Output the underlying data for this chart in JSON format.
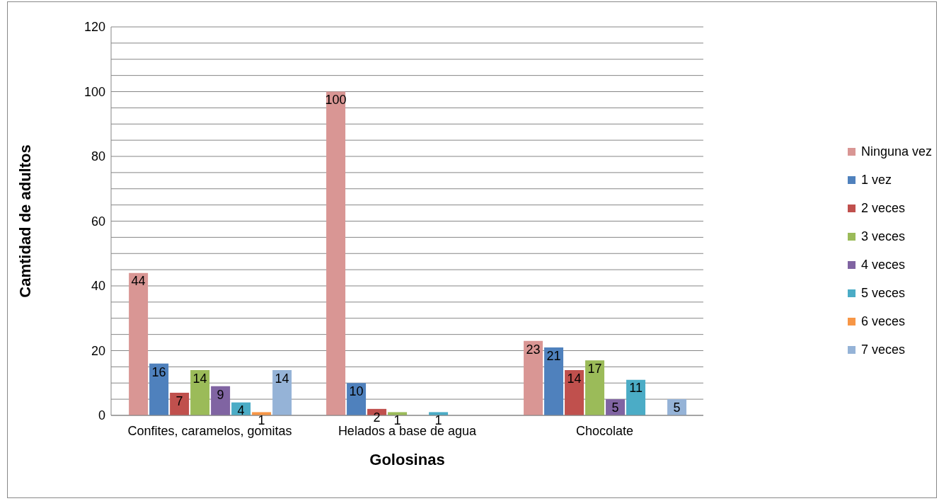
{
  "chart_data": {
    "type": "bar",
    "xlabel": "Golosinas",
    "ylabel": "Camtidad de adultos",
    "categories": [
      "Confites, caramelos, gomitas",
      "Helados a base de agua",
      "Chocolate"
    ],
    "series": [
      {
        "name": "Ninguna vez",
        "color": "#d99694",
        "values": [
          44,
          100,
          23
        ]
      },
      {
        "name": "1 vez",
        "color": "#4f81bd",
        "values": [
          16,
          10,
          21
        ]
      },
      {
        "name": "2 veces",
        "color": "#c0504d",
        "values": [
          7,
          2,
          14
        ]
      },
      {
        "name": "3 veces",
        "color": "#9bbb59",
        "values": [
          14,
          1,
          17
        ]
      },
      {
        "name": "4 veces",
        "color": "#8064a2",
        "values": [
          9,
          null,
          5
        ]
      },
      {
        "name": "5 veces",
        "color": "#4bacc6",
        "values": [
          4,
          1,
          11
        ]
      },
      {
        "name": "6 veces",
        "color": "#f79646",
        "values": [
          1,
          null,
          null
        ]
      },
      {
        "name": "7 veces",
        "color": "#95b3d7",
        "values": [
          14,
          null,
          5
        ]
      }
    ],
    "ylim": [
      0,
      120
    ],
    "yticks": [
      0,
      {
        "value": 5,
        "label": null
      },
      {
        "value": 10,
        "label": null
      },
      {
        "value": 15,
        "label": null
      },
      20,
      {
        "value": 25,
        "label": null
      },
      {
        "value": 30,
        "label": null
      },
      {
        "value": 35,
        "label": null
      },
      40,
      {
        "value": 45,
        "label": null
      },
      {
        "value": 50,
        "label": null
      },
      {
        "value": 55,
        "label": null
      },
      60,
      {
        "value": 65,
        "label": null
      },
      {
        "value": 70,
        "label": null
      },
      {
        "value": 75,
        "label": null
      },
      80,
      {
        "value": 85,
        "label": null
      },
      {
        "value": 90,
        "label": null
      },
      {
        "value": 95,
        "label": null
      },
      100,
      {
        "value": 105,
        "label": null
      },
      {
        "value": 110,
        "label": null
      },
      {
        "value": 115,
        "label": null
      },
      120
    ],
    "grid": "y",
    "legend": "right",
    "data_labels": true
  }
}
